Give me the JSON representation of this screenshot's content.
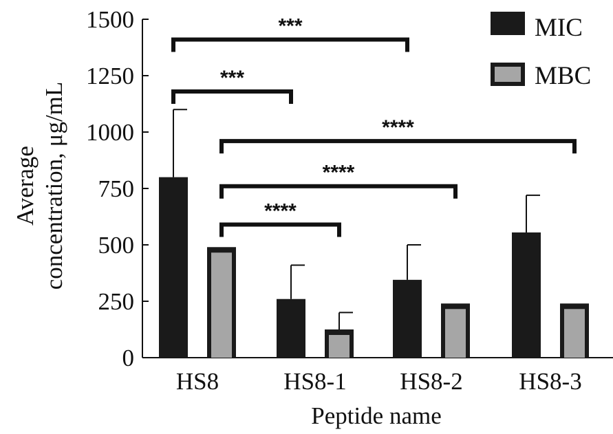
{
  "chart_data": {
    "type": "bar",
    "title": "",
    "xlabel": "Peptide name",
    "ylabel_line1": "Average",
    "ylabel_line2": "concentration, μg/mL",
    "ylim": [
      0,
      1500
    ],
    "yticks": [
      "0",
      "250",
      "500",
      "750",
      "1000",
      "1250",
      "1500"
    ],
    "categories": [
      "HS8",
      "HS8-1",
      "HS8-2",
      "HS8-3"
    ],
    "legend_position": "top-right",
    "grid": false,
    "series": [
      {
        "name": "MIC",
        "color": "#1a1a1a",
        "values": [
          800,
          260,
          345,
          555
        ],
        "errors": [
          300,
          150,
          155,
          165
        ]
      },
      {
        "name": "MBC",
        "color": "#a6a6a6",
        "values": [
          490,
          125,
          240,
          240
        ],
        "errors": [
          0,
          75,
          0,
          0
        ]
      }
    ],
    "significance": [
      {
        "label": "***",
        "y": 1410,
        "from": {
          "category": 0,
          "series": 0
        },
        "to": {
          "category": 2,
          "series": 0
        }
      },
      {
        "label": "***",
        "y": 1180,
        "from": {
          "category": 0,
          "series": 0
        },
        "to": {
          "category": 1,
          "series": 0
        }
      },
      {
        "label": "****",
        "y": 960,
        "from": {
          "category": 0,
          "series": 1
        },
        "to": {
          "category": 3,
          "series": 1
        }
      },
      {
        "label": "****",
        "y": 760,
        "from": {
          "category": 0,
          "series": 1
        },
        "to": {
          "category": 2,
          "series": 1
        }
      },
      {
        "label": "****",
        "y": 590,
        "from": {
          "category": 0,
          "series": 1
        },
        "to": {
          "category": 1,
          "series": 1
        }
      }
    ]
  }
}
